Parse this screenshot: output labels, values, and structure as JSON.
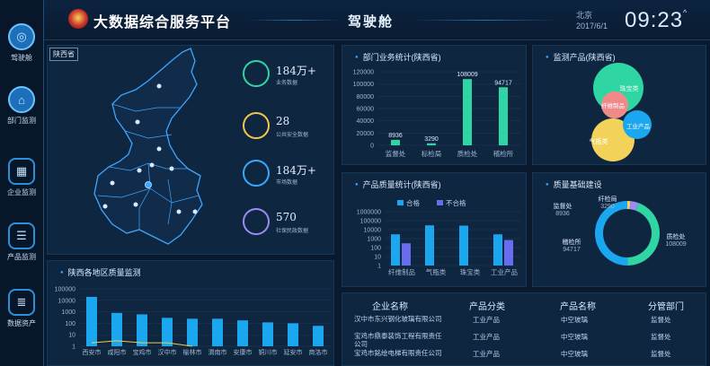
{
  "header": {
    "title": "大数据综合服务平台",
    "center_title": "驾驶舱",
    "city": "北京",
    "date": "2017/6/1",
    "time": "09:23",
    "caret": "^"
  },
  "sidebar": {
    "items": [
      {
        "label": "驾驶舱",
        "icon": "gauge-icon"
      },
      {
        "label": "部门监测",
        "icon": "location-pin-icon"
      },
      {
        "label": "企业监测",
        "icon": "building-icon"
      },
      {
        "label": "产品监测",
        "icon": "document-icon"
      },
      {
        "label": "数据资产",
        "icon": "database-icon"
      }
    ]
  },
  "map": {
    "tag": "陕西省",
    "stats": [
      {
        "value": "184万+",
        "label": "业务数据",
        "color": "#2fd6a4"
      },
      {
        "value": "28",
        "label": "公共安全数据",
        "color": "#f2c94c"
      },
      {
        "value": "184万+",
        "label": "市场数据",
        "color": "#3aa8ff"
      },
      {
        "value": "570",
        "label": "社保民政数据",
        "color": "#9a8cf2"
      }
    ]
  },
  "dept_chart": {
    "title": "部门业务统计(陕西省)",
    "chart_data": {
      "type": "bar",
      "categories": [
        "监督处",
        "标检局",
        "质检处",
        "稽检所"
      ],
      "values": [
        8936,
        3290,
        108009,
        94717
      ],
      "y_ticks": [
        "120000",
        "100000",
        "80000",
        "60000",
        "40000",
        "20000",
        "0"
      ],
      "ylim": [
        0,
        120000
      ],
      "color": "#2fd6a4"
    }
  },
  "product_chart": {
    "title": "监测产品(陕西省)",
    "chart_data": {
      "type": "bubble",
      "items": [
        {
          "label": "珠宝类",
          "color": "#2fd6a4"
        },
        {
          "label": "纤维制品",
          "color": "#f08a8a"
        },
        {
          "label": "工业产品",
          "color": "#1aa7f0"
        },
        {
          "label": "气瓶类",
          "color": "#f2d259"
        }
      ]
    }
  },
  "quality_chart": {
    "title": "产品质量统计(陕西省)",
    "chart_data": {
      "type": "bar",
      "categories": [
        "纤维制品",
        "气瓶类",
        "珠宝类",
        "工业产品"
      ],
      "series": [
        {
          "name": "合格",
          "color": "#1aa7f0",
          "values": [
            3000,
            30000,
            28000,
            3000
          ]
        },
        {
          "name": "不合格",
          "color": "#6a6cf0",
          "values": [
            300,
            0,
            0,
            700
          ]
        }
      ],
      "y_ticks": [
        "1000000",
        "100000",
        "10000",
        "1000",
        "100",
        "10",
        "1"
      ],
      "scale": "log"
    }
  },
  "ring_chart": {
    "title": "质量基础建设",
    "chart_data": {
      "type": "donut",
      "items": [
        {
          "label": "纤检局",
          "value": 3290,
          "color": "#f2d259"
        },
        {
          "label": "监督处",
          "value": 8936,
          "color": "#9a8cf2"
        },
        {
          "label": "稽检所",
          "value": 94717,
          "color": "#2fd6a4"
        },
        {
          "label": "质检处",
          "value": 108009,
          "color": "#1aa7f0"
        }
      ]
    }
  },
  "region_chart": {
    "title": "陕西各地区质量监测",
    "chart_data": {
      "type": "bar",
      "categories": [
        "西安市",
        "咸阳市",
        "宝鸡市",
        "汉中市",
        "榆林市",
        "渭南市",
        "安康市",
        "铜川市",
        "延安市",
        "商洛市"
      ],
      "values": [
        20000,
        800,
        600,
        300,
        250,
        250,
        180,
        120,
        100,
        60
      ],
      "line": [
        2,
        3,
        2,
        2,
        1,
        null,
        null,
        null,
        null,
        null
      ],
      "y_ticks": [
        "100000",
        "10000",
        "1000",
        "100",
        "10",
        "1"
      ],
      "scale": "log",
      "color": "#1aa7f0",
      "line_color": "#f2c94c"
    }
  },
  "table": {
    "headers": [
      "企业名称",
      "产品分类",
      "产品名称",
      "分管部门"
    ],
    "rows": [
      [
        "汉中市东兴钢化玻璃有限公司",
        "工业产品",
        "中空玻璃",
        "监督处"
      ],
      [
        "宝鸡市鼎泰装饰工程有限责任公司",
        "工业产品",
        "中空玻璃",
        "监督处"
      ],
      [
        "宝鸡市銘绘电梯有限责任公司",
        "工业产品",
        "中空玻璃",
        "监督处"
      ]
    ]
  }
}
